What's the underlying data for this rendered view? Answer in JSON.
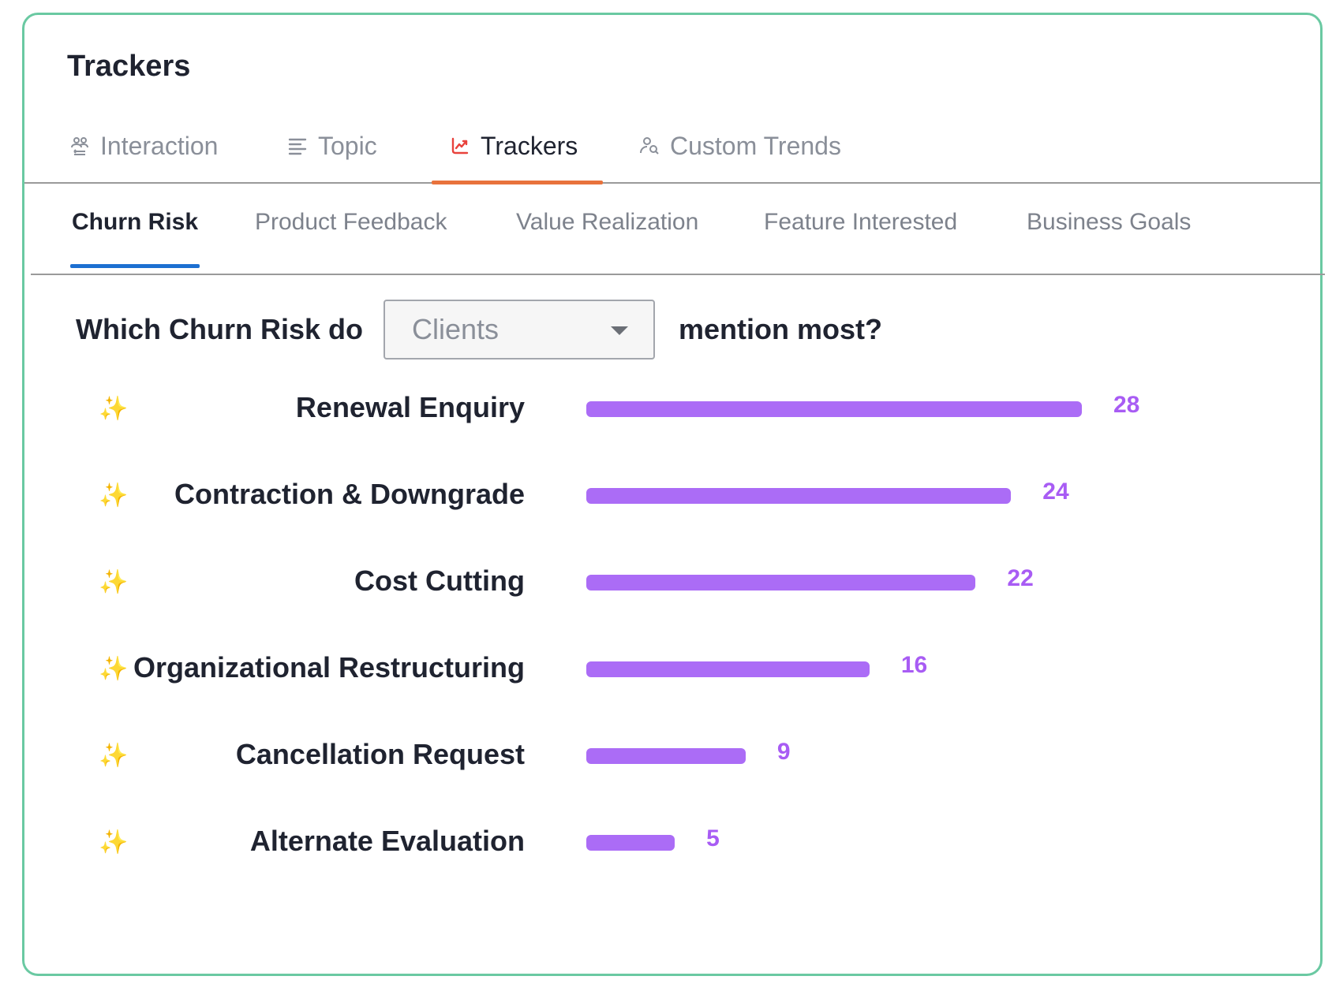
{
  "panel": {
    "title": "Trackers"
  },
  "main_tabs": [
    {
      "label": "Interaction",
      "icon": "people-icon",
      "active": false
    },
    {
      "label": "Topic",
      "icon": "list-icon",
      "active": false
    },
    {
      "label": "Trackers",
      "icon": "trackers-icon",
      "active": true
    },
    {
      "label": "Custom Trends",
      "icon": "person-search-icon",
      "active": false
    }
  ],
  "sub_tabs": [
    {
      "label": "Churn Risk",
      "active": true
    },
    {
      "label": "Product Feedback",
      "active": false
    },
    {
      "label": "Value Realization",
      "active": false
    },
    {
      "label": "Feature Interested",
      "active": false
    },
    {
      "label": "Business Goals",
      "active": false
    }
  ],
  "question": {
    "prefix": "Which Churn Risk do",
    "select_value": "Clients",
    "suffix": "mention most?"
  },
  "colors": {
    "accent_orange": "#e8723c",
    "accent_blue": "#1c6fd1",
    "bar": "#ab6cf6",
    "value_text": "#a85cf4",
    "card_border": "#6ac9a2"
  },
  "chart_data": {
    "type": "bar",
    "orientation": "horizontal",
    "categories": [
      "Renewal Enquiry",
      "Contraction & Downgrade",
      "Cost Cutting",
      "Organizational Restructuring",
      "Cancellation Request",
      "Alternate Evaluation"
    ],
    "values": [
      28,
      24,
      22,
      16,
      9,
      5
    ],
    "row_icon": "sparkles-icon",
    "row_icon_glyph": "✨"
  }
}
